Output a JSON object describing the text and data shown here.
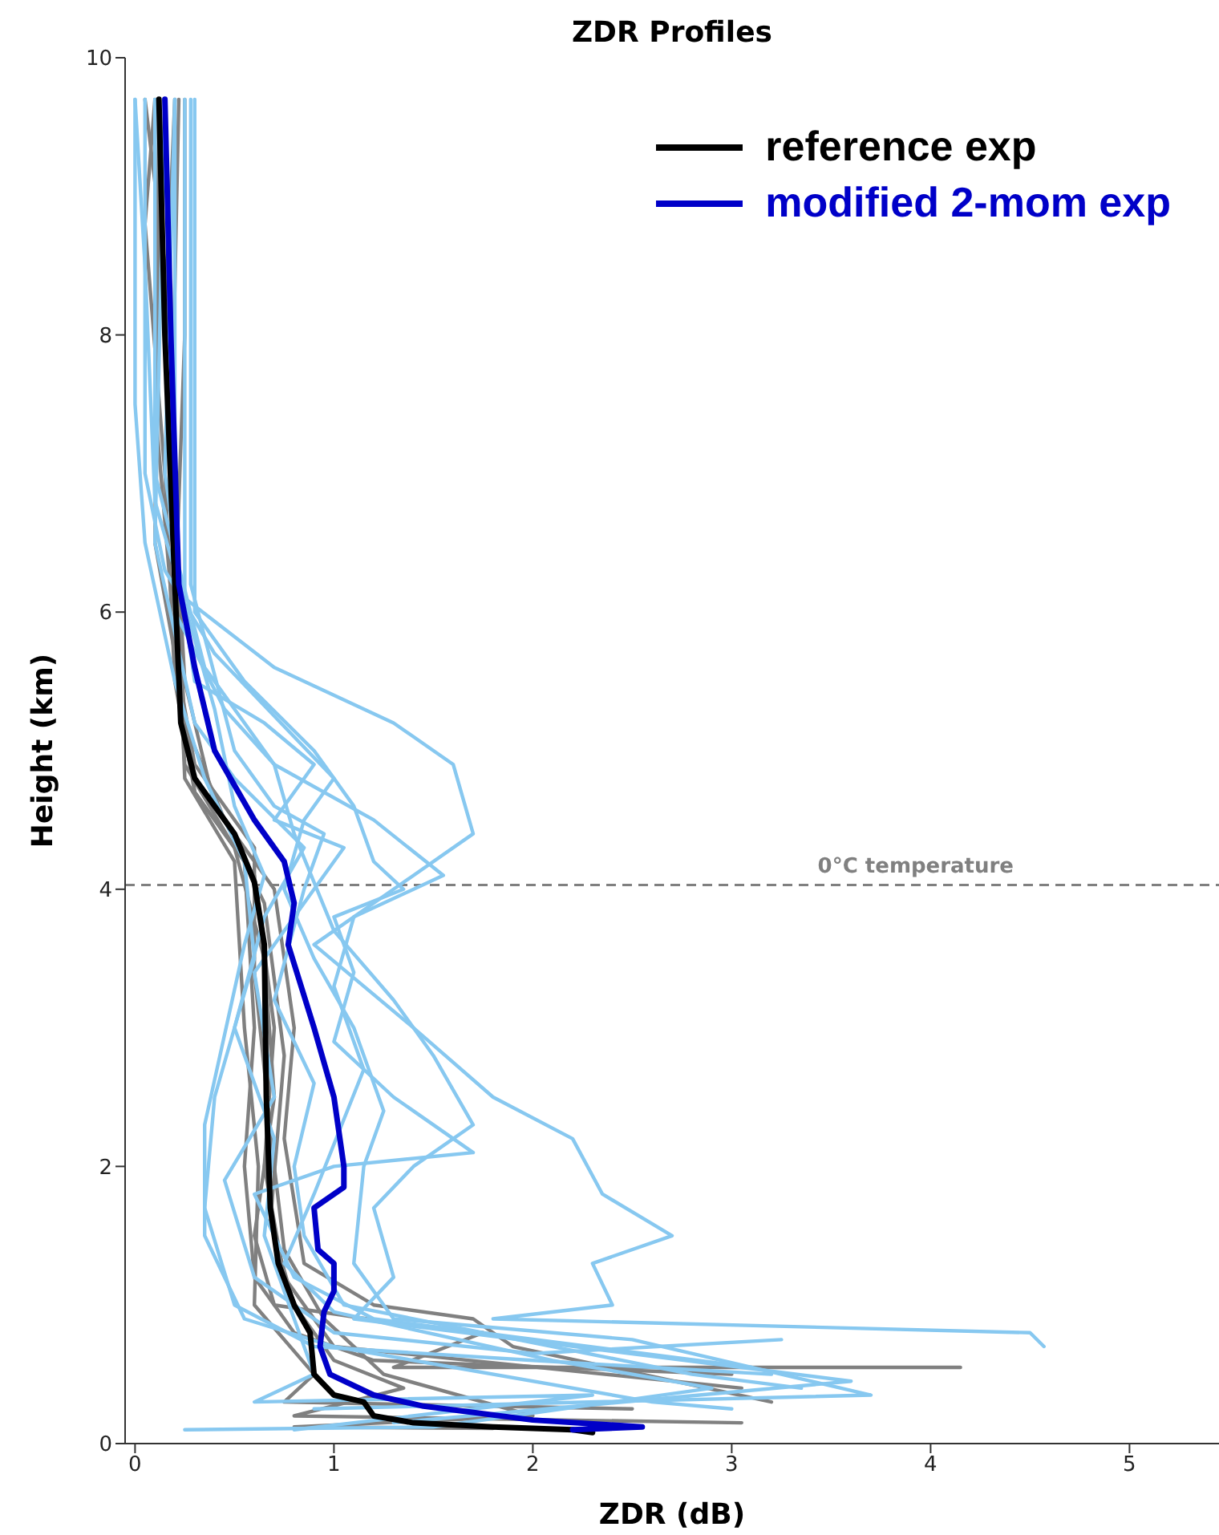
{
  "chart_data": {
    "type": "line",
    "title": "ZDR Profiles",
    "xlabel": "ZDR (dB)",
    "ylabel": "Height (km)",
    "xlim": [
      -0.05,
      5.45
    ],
    "xticks": [
      0,
      1,
      2,
      3,
      4,
      5
    ],
    "ylim": [
      0,
      10
    ],
    "yticks": [
      0,
      2,
      4,
      6,
      8,
      10
    ],
    "legend": "top right",
    "marker": "none",
    "line_style": "solid",
    "ref_lines": [
      {
        "axis": "y",
        "value": 4.03,
        "label": "0°C temperature",
        "color": "#808080",
        "line_style": "dashed"
      }
    ],
    "series": [
      {
        "color": "#808080",
        "x": [
          0.1,
          0.05,
          0.15,
          0.2,
          0.3,
          0.55,
          0.6,
          0.55,
          0.6,
          0.8,
          1.2,
          3.0
        ],
        "values": [
          9.7,
          8.8,
          7,
          5.5,
          4.7,
          4.2,
          3,
          2,
          1.2,
          0.8,
          0.6,
          0.5
        ]
      },
      {
        "color": "#808080",
        "x": [
          0.25,
          0.25,
          0.2,
          0.25,
          0.5,
          0.65,
          0.7,
          0.6,
          0.7,
          1.4,
          1.75,
          1.3,
          4.15
        ],
        "values": [
          9.7,
          8,
          6,
          4.9,
          4.3,
          3.5,
          2.5,
          1.5,
          1.0,
          0.85,
          0.8,
          0.55,
          0.55
        ]
      },
      {
        "color": "#808080",
        "x": [
          0.15,
          0.1,
          0.2,
          0.3,
          0.6,
          0.7,
          0.65,
          0.75,
          1.0,
          3.05
        ],
        "values": [
          9.7,
          7.5,
          5.8,
          4.7,
          4.1,
          3,
          2,
          1.2,
          0.7,
          0.4
        ]
      },
      {
        "color": "#808080",
        "x": [
          0.2,
          0.15,
          0.25,
          0.4,
          0.7,
          0.8,
          0.75,
          0.85,
          1.2,
          1.7,
          1.9,
          3.2
        ],
        "values": [
          9.7,
          8,
          5.5,
          4.6,
          4.0,
          3.0,
          2.2,
          1.3,
          1.0,
          0.9,
          0.7,
          0.3
        ]
      },
      {
        "color": "#808080",
        "x": [
          0.05,
          0.15,
          0.2,
          0.25,
          0.5,
          0.55,
          0.62,
          0.6,
          0.9,
          0.75,
          2.5
        ],
        "values": [
          9.7,
          8.5,
          6.5,
          4.8,
          4.2,
          3.0,
          2.0,
          1.0,
          0.5,
          0.3,
          0.25
        ]
      },
      {
        "color": "#808080",
        "x": [
          0.22,
          0.18,
          0.25,
          0.45,
          0.65,
          0.75,
          0.68,
          0.8,
          1.0,
          1.35,
          0.8,
          3.05
        ],
        "values": [
          9.7,
          7,
          5.2,
          4.5,
          3.9,
          2.8,
          1.6,
          1.0,
          0.6,
          0.4,
          0.2,
          0.15
        ]
      },
      {
        "color": "#808080",
        "x": [
          0.12,
          0.1,
          0.3,
          0.6,
          0.6,
          0.7,
          0.75,
          0.95,
          1.25,
          2.0,
          0.8,
          1.8
        ],
        "values": [
          9.7,
          6.5,
          4.9,
          4.3,
          3.4,
          2.0,
          1.4,
          0.9,
          0.5,
          0.2,
          0.12,
          0.11
        ]
      },
      {
        "color": "#87c8f0",
        "x": [
          0.0,
          0.0,
          0.05,
          0.2,
          0.35,
          0.55,
          0.6,
          0.4,
          0.35,
          0.5,
          0.9,
          2.0,
          3.2
        ],
        "values": [
          9.7,
          7.5,
          6.5,
          5.5,
          4.8,
          4.2,
          3.5,
          2.5,
          1.7,
          1.0,
          0.7,
          0.6,
          0.5
        ]
      },
      {
        "color": "#87c8f0",
        "x": [
          0.3,
          0.3,
          0.55,
          0.9,
          1.1,
          1.2,
          1.35,
          1.0,
          1.1,
          1.0,
          1.3,
          1.7,
          1.0,
          0.6,
          0.8,
          1.2,
          3.1
        ],
        "values": [
          9.7,
          6,
          5.5,
          5.0,
          4.6,
          4.2,
          4.0,
          3.8,
          3.4,
          2.9,
          2.5,
          2.1,
          2.0,
          1.8,
          1.2,
          0.9,
          0.55
        ]
      },
      {
        "color": "#87c8f0",
        "x": [
          0.25,
          0.25,
          0.7,
          1.3,
          1.6,
          1.7,
          1.3,
          0.9,
          1.4,
          1.8,
          2.2,
          2.35,
          2.7,
          2.3,
          2.4,
          1.8,
          4.5,
          4.57
        ],
        "values": [
          9.7,
          6.1,
          5.6,
          5.2,
          4.9,
          4.4,
          4.0,
          3.6,
          3.0,
          2.5,
          2.2,
          1.8,
          1.5,
          1.3,
          1.0,
          0.9,
          0.8,
          0.7
        ]
      },
      {
        "color": "#87c8f0",
        "x": [
          0.2,
          0.15,
          0.3,
          0.65,
          0.9,
          0.7,
          1.05,
          0.9,
          0.6,
          0.7,
          0.45,
          0.6,
          1.0,
          2.0,
          3.25
        ],
        "values": [
          9.7,
          7,
          5.5,
          5.2,
          4.9,
          4.5,
          4.3,
          4.0,
          3.4,
          2.5,
          1.9,
          1.2,
          0.8,
          0.65,
          0.75
        ]
      },
      {
        "color": "#87c8f0",
        "x": [
          0.05,
          0.05,
          0.15,
          0.4,
          0.8,
          1.0,
          0.85,
          0.75,
          0.9,
          1.1,
          1.25,
          1.15,
          1.1,
          1.3,
          2.5,
          3.7,
          0.9
        ],
        "values": [
          9.7,
          7,
          6.3,
          5.7,
          5.1,
          4.8,
          4.5,
          4.0,
          3.5,
          3.0,
          2.4,
          2.0,
          1.3,
          0.9,
          0.75,
          0.35,
          0.25
        ]
      },
      {
        "color": "#87c8f0",
        "x": [
          0.28,
          0.28,
          0.5,
          0.7,
          0.95,
          0.85,
          0.7,
          0.9,
          0.8,
          0.85,
          1.05,
          2.8,
          3.35
        ],
        "values": [
          9.7,
          6.2,
          5.0,
          4.6,
          4.4,
          4.0,
          3.2,
          2.6,
          2.0,
          1.5,
          1.0,
          0.5,
          0.4
        ]
      },
      {
        "color": "#87c8f0",
        "x": [
          0.15,
          0.1,
          0.3,
          0.5,
          0.85,
          0.65,
          0.5,
          0.7,
          0.65,
          0.8,
          0.9,
          0.6,
          2.3,
          0.8
        ],
        "values": [
          9.7,
          6.5,
          5.2,
          4.8,
          4.3,
          3.8,
          3.0,
          2.2,
          1.5,
          0.9,
          0.5,
          0.3,
          0.35,
          0.1
        ]
      },
      {
        "color": "#87c8f0",
        "x": [
          0.0,
          0.05,
          0.1,
          0.3,
          0.4,
          0.5,
          0.65,
          0.55,
          0.35,
          0.35,
          0.55,
          1.0,
          2.6,
          3.0
        ],
        "values": [
          9.7,
          8.5,
          6.8,
          5.8,
          5.3,
          4.6,
          4.1,
          3.6,
          2.3,
          1.5,
          0.9,
          0.7,
          0.3,
          0.25
        ]
      },
      {
        "color": "#87c8f0",
        "x": [
          0.2,
          0.2,
          0.45,
          0.7,
          0.8,
          1.0,
          1.3,
          1.5,
          1.7,
          1.4,
          1.2,
          1.3,
          1.1,
          3.6,
          1.3
        ],
        "values": [
          9.7,
          6.0,
          5.3,
          4.9,
          4.4,
          3.7,
          3.2,
          2.8,
          2.3,
          2.0,
          1.7,
          1.2,
          0.9,
          0.45,
          0.15
        ]
      },
      {
        "color": "#87c8f0",
        "x": [
          0.1,
          0.1,
          0.35,
          0.7,
          1.2,
          1.55,
          1.1,
          1.0,
          1.15,
          0.9,
          0.75,
          1.0,
          2.1,
          2.9,
          1.5,
          0.25
        ],
        "values": [
          9.7,
          7.0,
          5.6,
          4.9,
          4.5,
          4.1,
          3.8,
          3.3,
          2.7,
          1.8,
          1.3,
          0.95,
          0.6,
          0.4,
          0.12,
          0.1
        ]
      },
      {
        "name": "reference exp",
        "color": "#000000",
        "x": [
          0.12,
          0.15,
          0.2,
          0.23,
          0.3,
          0.5,
          0.6,
          0.65,
          0.66,
          0.68,
          0.72,
          0.8,
          0.88,
          0.9,
          1.0,
          1.15,
          1.2,
          1.4,
          1.8,
          2.2,
          2.3
        ],
        "values": [
          9.7,
          8,
          6.2,
          5.2,
          4.8,
          4.4,
          4.05,
          3.6,
          2.5,
          1.7,
          1.3,
          1.0,
          0.8,
          0.5,
          0.35,
          0.3,
          0.2,
          0.15,
          0.12,
          0.1,
          0.08
        ]
      },
      {
        "name": "modified 2-mom exp",
        "color": "#0000c8",
        "x": [
          0.15,
          0.18,
          0.22,
          0.3,
          0.4,
          0.6,
          0.75,
          0.8,
          0.77,
          0.9,
          1.0,
          1.05,
          1.05,
          0.9,
          0.92,
          1.0,
          1.0,
          0.95,
          0.93,
          0.98,
          1.2,
          1.45,
          2.0,
          2.55,
          2.2
        ],
        "values": [
          9.7,
          8,
          6.2,
          5.6,
          5.0,
          4.5,
          4.2,
          3.9,
          3.6,
          3.0,
          2.5,
          2.0,
          1.85,
          1.7,
          1.4,
          1.3,
          1.1,
          0.95,
          0.7,
          0.5,
          0.35,
          0.27,
          0.17,
          0.12,
          0.1
        ]
      }
    ]
  }
}
